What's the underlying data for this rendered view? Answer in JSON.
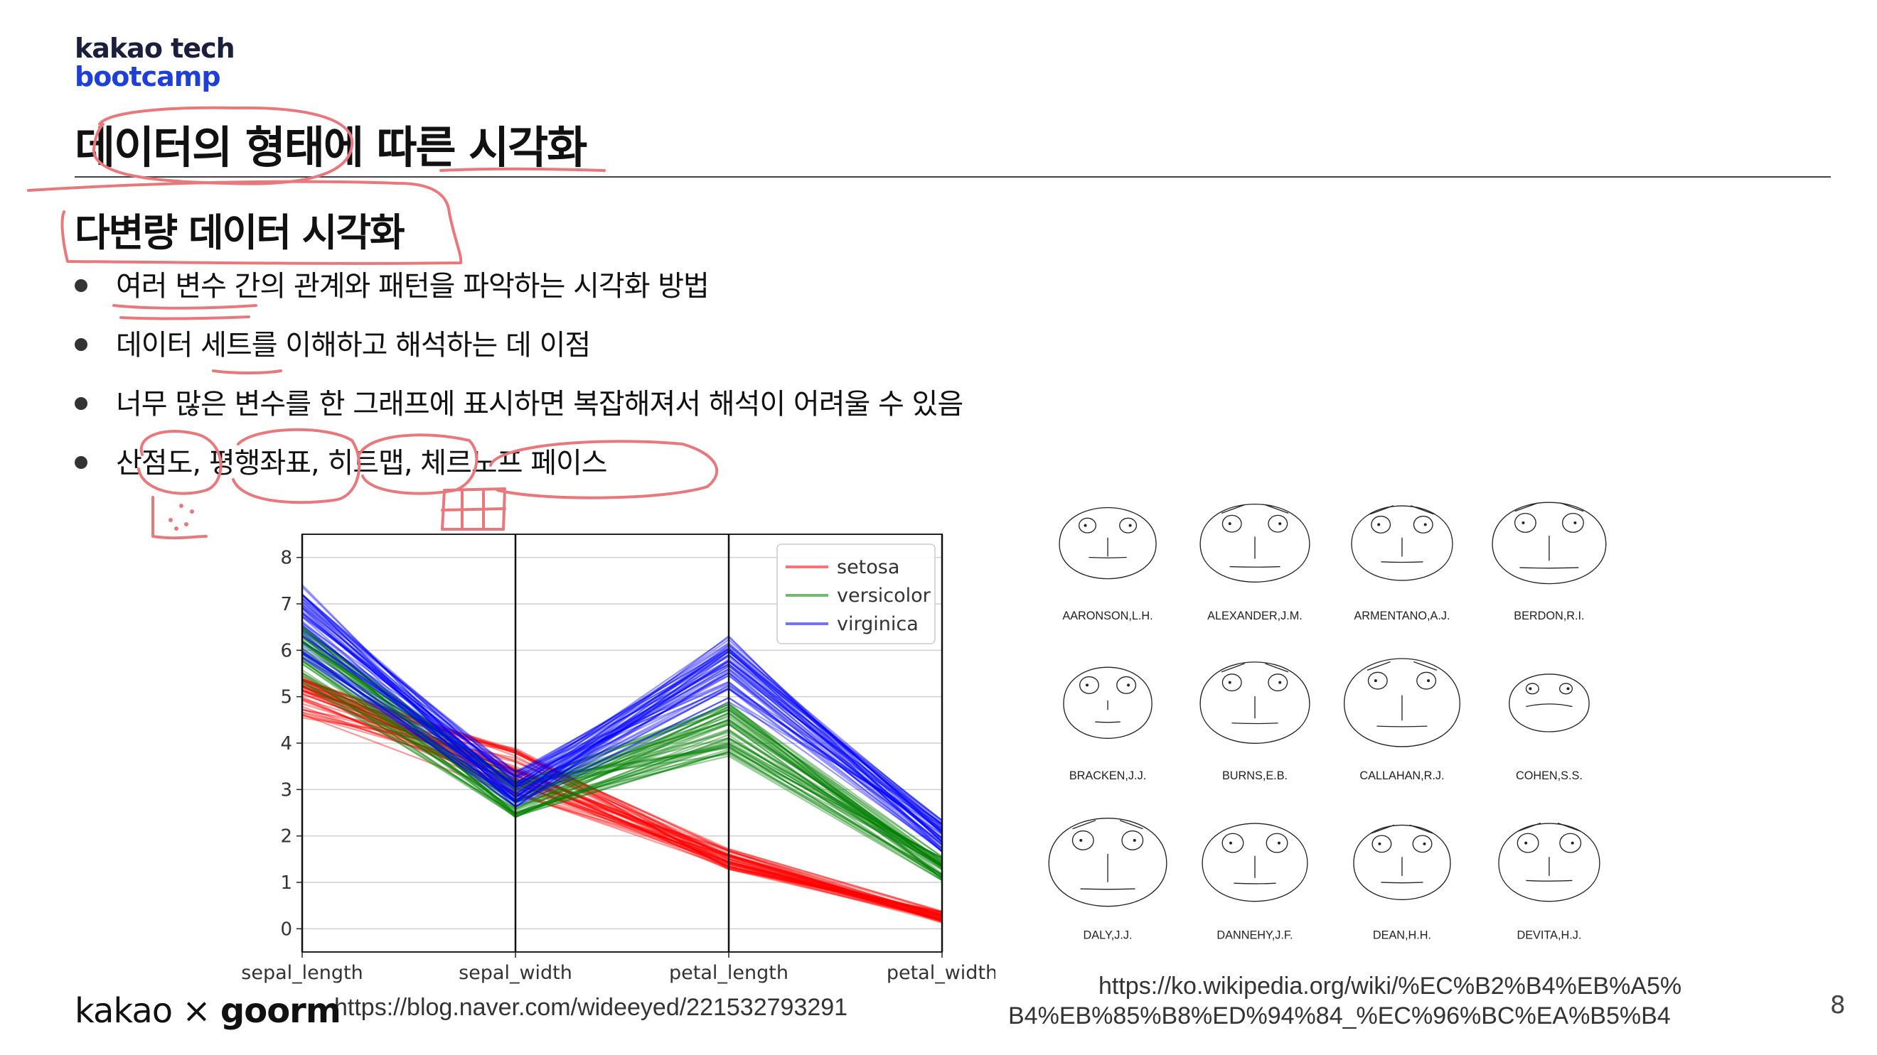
{
  "brand": {
    "line1": "kakao tech",
    "line2": "bootcamp"
  },
  "title": "데이터의 형태에 따른 시각화",
  "subtitle": "다변량 데이터 시각화",
  "bullets": [
    "여러 변수 간의 관계와 패턴을 파악하는 시각화 방법",
    "데이터 세트를 이해하고 해석하는 데 이점",
    "너무 많은 변수를 한 그래프에 표시하면 복잡해져서 해석이 어려울 수 있음",
    "산점도, 평행좌표, 히트맵, 체르노프 페이스"
  ],
  "chart_data": {
    "type": "line",
    "x": [
      "sepal_length",
      "sepal_width",
      "petal_length",
      "petal_width"
    ],
    "ylim": [
      -0.5,
      8.5
    ],
    "yticks": [
      "0",
      "1",
      "2",
      "3",
      "4",
      "5",
      "6",
      "7",
      "8"
    ],
    "grid": true,
    "legend_placement": "top-right",
    "series": [
      {
        "name": "setosa",
        "color": "#ff0000",
        "values": [
          5.0,
          3.4,
          1.5,
          0.25
        ]
      },
      {
        "name": "versicolor",
        "color": "#008000",
        "values": [
          5.9,
          2.8,
          4.3,
          1.3
        ]
      },
      {
        "name": "virginica",
        "color": "#0000ff",
        "values": [
          6.6,
          3.0,
          5.6,
          2.0
        ]
      }
    ]
  },
  "faces": [
    "AARONSON,L.H.",
    "ALEXANDER,J.M.",
    "ARMENTANO,A.J.",
    "BERDON,R.I.",
    "BRACKEN,J.J.",
    "BURNS,E.B.",
    "CALLAHAN,R.J.",
    "COHEN,S.S.",
    "DALY,J.J.",
    "DANNEHY,J.F.",
    "DEAN,H.H.",
    "DEVITA,H.J."
  ],
  "sources": {
    "chart": "https://blog.naver.com/wideeyed/221532793291",
    "faces_line1": "https://ko.wikipedia.org/wiki/%EC%B2%B4%EB%A5%",
    "faces_line2": "B4%EB%85%B8%ED%94%84_%EC%96%BC%EA%B5%B4"
  },
  "footer": {
    "kakao": "kakao",
    "times": "×",
    "goorm": "goorm"
  },
  "page_number": "8",
  "annotation_color": "#e8787c"
}
